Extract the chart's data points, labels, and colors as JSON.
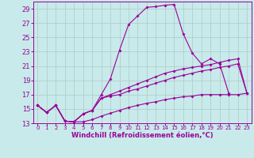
{
  "xlabel": "Windchill (Refroidissement éolien,°C)",
  "background_color": "#c8eaea",
  "grid_color": "#b0c8c8",
  "line_color": "#990099",
  "xlim": [
    -0.5,
    23.5
  ],
  "ylim": [
    13,
    30
  ],
  "yticks": [
    13,
    15,
    17,
    19,
    21,
    23,
    25,
    27,
    29
  ],
  "xticks": [
    0,
    1,
    2,
    3,
    4,
    5,
    6,
    7,
    8,
    9,
    10,
    11,
    12,
    13,
    14,
    15,
    16,
    17,
    18,
    19,
    20,
    21,
    22,
    23
  ],
  "lines": [
    {
      "x": [
        0,
        1,
        2,
        3,
        4,
        5,
        6,
        7,
        8,
        9,
        10,
        11,
        12,
        13,
        14,
        15,
        16,
        17,
        18,
        19,
        20,
        21
      ],
      "y": [
        15.5,
        14.5,
        15.5,
        13.3,
        13.2,
        14.3,
        14.8,
        17.0,
        19.2,
        23.2,
        26.8,
        28.0,
        29.2,
        29.3,
        29.5,
        29.6,
        25.5,
        22.8,
        21.3,
        22.0,
        21.3,
        17.2
      ]
    },
    {
      "x": [
        0,
        1,
        2,
        3,
        4,
        5,
        6,
        7,
        8,
        9,
        10,
        11,
        12,
        13,
        14,
        15,
        16,
        17,
        18,
        19,
        20,
        21,
        22,
        23
      ],
      "y": [
        15.5,
        14.5,
        15.5,
        13.3,
        13.2,
        14.3,
        14.8,
        16.5,
        17.0,
        17.5,
        18.0,
        18.5,
        19.0,
        19.5,
        20.0,
        20.3,
        20.6,
        20.8,
        21.0,
        21.2,
        21.5,
        21.8,
        22.0,
        17.2
      ]
    },
    {
      "x": [
        0,
        1,
        2,
        3,
        4,
        5,
        6,
        7,
        8,
        9,
        10,
        11,
        12,
        13,
        14,
        15,
        16,
        17,
        18,
        19,
        20,
        21,
        22,
        23
      ],
      "y": [
        15.5,
        14.5,
        15.5,
        13.3,
        13.2,
        14.3,
        14.8,
        16.5,
        16.8,
        17.0,
        17.5,
        17.8,
        18.2,
        18.6,
        19.0,
        19.4,
        19.7,
        20.0,
        20.3,
        20.5,
        20.8,
        21.0,
        21.3,
        17.2
      ]
    },
    {
      "x": [
        0,
        1,
        2,
        3,
        4,
        5,
        6,
        7,
        8,
        9,
        10,
        11,
        12,
        13,
        14,
        15,
        16,
        17,
        18,
        19,
        20,
        21,
        22,
        23
      ],
      "y": [
        15.5,
        14.5,
        15.5,
        13.3,
        13.2,
        13.2,
        13.5,
        14.0,
        14.4,
        14.8,
        15.2,
        15.5,
        15.8,
        16.0,
        16.3,
        16.5,
        16.7,
        16.8,
        17.0,
        17.0,
        17.0,
        17.0,
        17.0,
        17.2
      ]
    }
  ],
  "xlabel_fontsize": 6,
  "ytick_fontsize": 6,
  "xtick_fontsize": 5
}
